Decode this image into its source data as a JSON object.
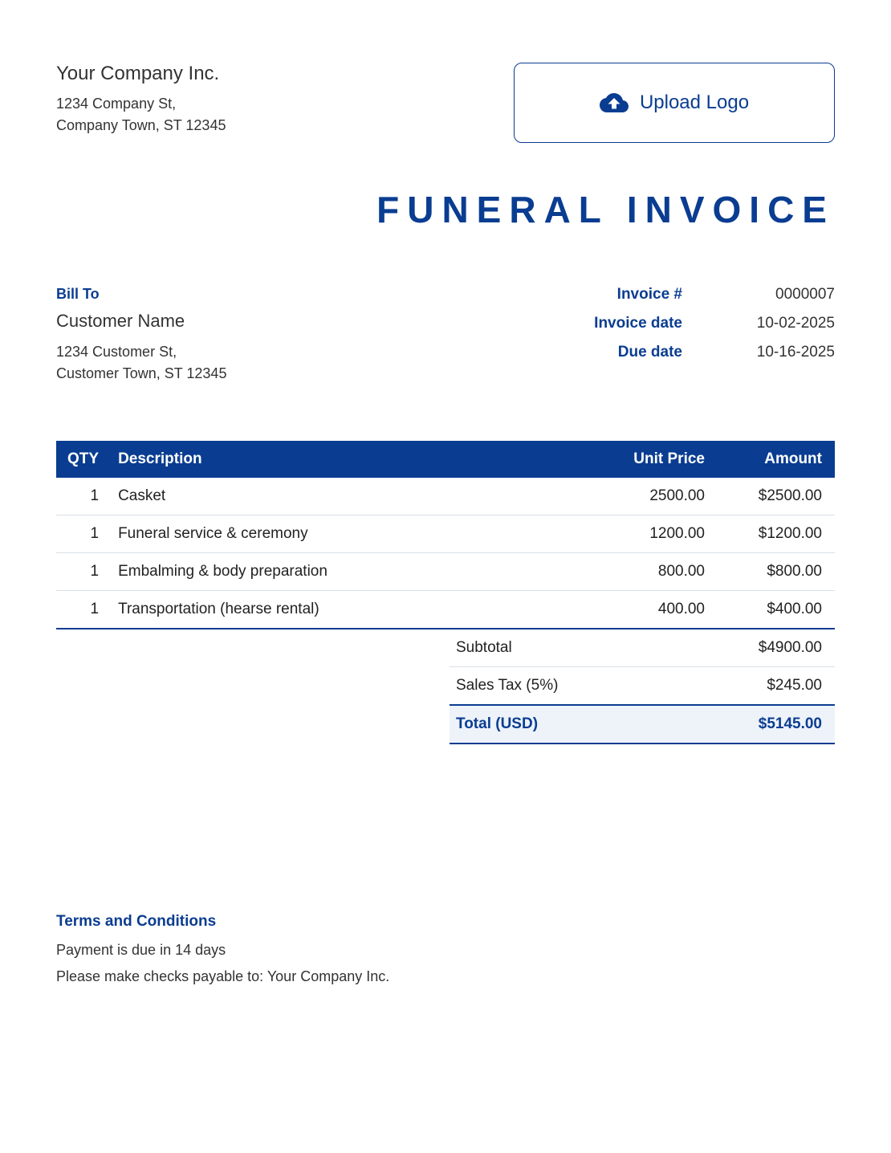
{
  "colors": {
    "primary": "#0a3d91",
    "header_bg": "#0a3d91",
    "total_bg": "#eef3fa",
    "border_light": "#d8dfe8",
    "text": "#333333",
    "background": "#ffffff"
  },
  "company": {
    "name": "Your Company Inc.",
    "addr1": "1234 Company St,",
    "addr2": "Company Town, ST 12345"
  },
  "upload_label": "Upload Logo",
  "title": "FUNERAL INVOICE",
  "bill_to": {
    "heading": "Bill To",
    "name": "Customer Name",
    "addr1": "1234 Customer St,",
    "addr2": "Customer Town, ST 12345"
  },
  "meta": {
    "number_label": "Invoice #",
    "number": "0000007",
    "date_label": "Invoice date",
    "date": "10-02-2025",
    "due_label": "Due date",
    "due": "10-16-2025"
  },
  "table": {
    "columns": {
      "qty": "QTY",
      "desc": "Description",
      "price": "Unit Price",
      "amount": "Amount"
    },
    "rows": [
      {
        "qty": "1",
        "desc": "Casket",
        "price": "2500.00",
        "amount": "$2500.00"
      },
      {
        "qty": "1",
        "desc": "Funeral service & ceremony",
        "price": "1200.00",
        "amount": "$1200.00"
      },
      {
        "qty": "1",
        "desc": "Embalming & body preparation",
        "price": "800.00",
        "amount": "$800.00"
      },
      {
        "qty": "1",
        "desc": "Transportation (hearse rental)",
        "price": "400.00",
        "amount": "$400.00"
      }
    ]
  },
  "totals": {
    "subtotal_label": "Subtotal",
    "subtotal": "$4900.00",
    "tax_label": "Sales Tax (5%)",
    "tax": "$245.00",
    "grand_label": "Total (USD)",
    "grand": "$5145.00"
  },
  "terms": {
    "heading": "Terms and Conditions",
    "line1": "Payment is due in 14 days",
    "line2": "Please make checks payable to: Your Company Inc."
  }
}
